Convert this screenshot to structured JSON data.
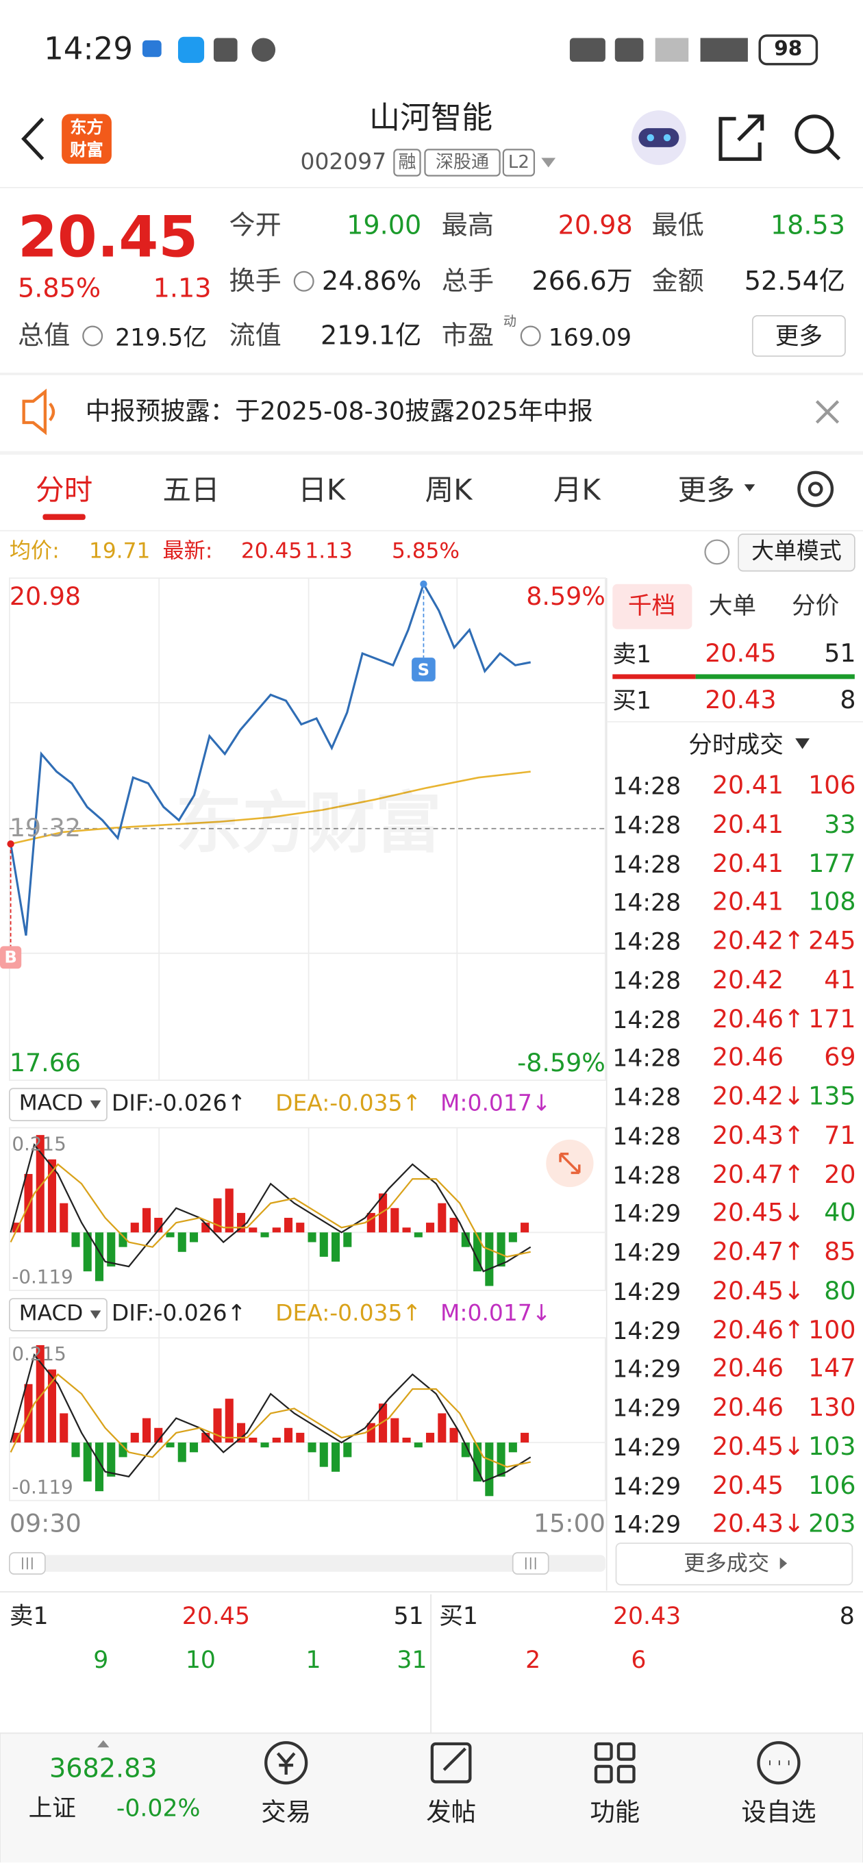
{
  "status_bar": {
    "time": "14:29",
    "battery": "98"
  },
  "header": {
    "logo": [
      "东方",
      "财富"
    ],
    "name": "山河智能",
    "code": "002097",
    "tags": [
      "融",
      "深股通",
      "L2"
    ]
  },
  "quote": {
    "price": "20.45",
    "change_pct": "5.85%",
    "change": "1.13",
    "fields": [
      {
        "label": "今开",
        "value": "19.00",
        "color": "green"
      },
      {
        "label": "最高",
        "value": "20.98",
        "color": "red"
      },
      {
        "label": "最低",
        "value": "18.53",
        "color": "green"
      },
      {
        "label": "换手",
        "value": "24.86%",
        "color": "dark"
      },
      {
        "label": "总手",
        "value": "266.6万",
        "color": "dark"
      },
      {
        "label": "金额",
        "value": "52.54亿",
        "color": "dark"
      },
      {
        "label": "总值",
        "value": "219.5亿",
        "color": "dark"
      },
      {
        "label": "流值",
        "value": "219.1亿",
        "color": "dark"
      },
      {
        "label": "市盈",
        "value": "169.09",
        "color": "dark"
      }
    ],
    "pe_tag": "动",
    "more": "更多"
  },
  "notice": "中报预披露：于2025-08-30披露2025年中报",
  "tabs": [
    "分时",
    "五日",
    "日K",
    "周K",
    "月K",
    "更多"
  ],
  "info_bar": {
    "avg_label": "均价:",
    "avg": "19.71",
    "latest_label": "最新:",
    "latest": "20.45",
    "change": "1.13",
    "change_pct": "5.85%",
    "mode": "大单模式"
  },
  "chart": {
    "high": "20.98",
    "low": "17.66",
    "prev_close": "19.32",
    "up_pct": "8.59%",
    "down_pct": "-8.59%",
    "start_time": "09:30",
    "end_time": "15:00",
    "watermark": "东方财富",
    "buy_marker": "B",
    "sell_marker": "S",
    "line_color": "#2f6db5",
    "avg_color": "#e8b431",
    "prices": [
      19.22,
      18.6,
      19.83,
      19.71,
      19.63,
      19.47,
      19.38,
      19.26,
      19.67,
      19.63,
      19.47,
      19.38,
      19.55,
      19.95,
      19.83,
      19.99,
      20.11,
      20.23,
      20.19,
      20.03,
      20.07,
      19.87,
      20.11,
      20.51,
      20.47,
      20.43,
      20.67,
      20.98,
      20.8,
      20.55,
      20.67,
      20.39,
      20.51,
      20.43,
      20.45
    ],
    "avg_prices": [
      19.22,
      19.3,
      19.33,
      19.35,
      19.37,
      19.4,
      19.45,
      19.52,
      19.6,
      19.67,
      19.71
    ]
  },
  "macd": {
    "panels": [
      {
        "label": "MACD",
        "dif": "DIF:-0.026↑",
        "dea": "DEA:-0.035↑",
        "m": "M:0.017↓",
        "top": "0.215",
        "bottom": "-0.119"
      },
      {
        "label": "MACD",
        "dif": "DIF:-0.026↑",
        "dea": "DEA:-0.035↑",
        "m": "M:0.017↓",
        "top": "0.215",
        "bottom": "-0.119"
      }
    ],
    "hist": [
      0.02,
      0.12,
      0.2,
      0.15,
      0.06,
      -0.03,
      -0.08,
      -0.1,
      -0.07,
      -0.03,
      0.02,
      0.05,
      0.03,
      -0.01,
      -0.04,
      -0.02,
      0.02,
      0.07,
      0.09,
      0.04,
      0.01,
      -0.01,
      0.01,
      0.03,
      0.02,
      -0.02,
      -0.05,
      -0.06,
      -0.03,
      0,
      0.04,
      0.08,
      0.05,
      0.01,
      -0.01,
      0.02,
      0.06,
      0.03,
      -0.03,
      -0.08,
      -0.11,
      -0.07,
      -0.02,
      0.02
    ],
    "dif": [
      0,
      0.18,
      0.12,
      0.02,
      -0.06,
      -0.07,
      -0.01,
      0.05,
      0.03,
      -0.02,
      0.02,
      0.1,
      0.06,
      0.03,
      0,
      0.03,
      0.09,
      0.14,
      0.1,
      0.02,
      -0.08,
      -0.06,
      -0.03
    ],
    "dea": [
      -0.02,
      0.08,
      0.14,
      0.1,
      0.03,
      -0.02,
      -0.03,
      0.02,
      0.03,
      0.01,
      0.01,
      0.06,
      0.07,
      0.04,
      0.01,
      0.02,
      0.05,
      0.11,
      0.11,
      0.06,
      -0.03,
      -0.05,
      -0.04
    ]
  },
  "order_book": {
    "tabs": [
      "千档",
      "大单",
      "分价"
    ],
    "sell1": [
      "卖1",
      "20.45",
      "51"
    ],
    "buy1": [
      "买1",
      "20.43",
      "8"
    ],
    "trades_title": "分时成交",
    "trades": [
      [
        "14:28",
        "20.41",
        "106",
        "red"
      ],
      [
        "14:28",
        "20.41",
        "33",
        "green"
      ],
      [
        "14:28",
        "20.41",
        "177",
        "green"
      ],
      [
        "14:28",
        "20.41",
        "108",
        "green"
      ],
      [
        "14:28",
        "20.42↑",
        "245",
        "red"
      ],
      [
        "14:28",
        "20.42",
        "41",
        "red"
      ],
      [
        "14:28",
        "20.46↑",
        "171",
        "red"
      ],
      [
        "14:28",
        "20.46",
        "69",
        "red"
      ],
      [
        "14:28",
        "20.42↓",
        "135",
        "green"
      ],
      [
        "14:28",
        "20.43↑",
        "71",
        "red"
      ],
      [
        "14:28",
        "20.47↑",
        "20",
        "red"
      ],
      [
        "14:29",
        "20.45↓",
        "40",
        "green"
      ],
      [
        "14:29",
        "20.47↑",
        "85",
        "red"
      ],
      [
        "14:29",
        "20.45↓",
        "80",
        "green"
      ],
      [
        "14:29",
        "20.46↑",
        "100",
        "red"
      ],
      [
        "14:29",
        "20.46",
        "147",
        "red"
      ],
      [
        "14:29",
        "20.46",
        "130",
        "red"
      ],
      [
        "14:29",
        "20.45↓",
        "103",
        "green"
      ],
      [
        "14:29",
        "20.45",
        "106",
        "green"
      ],
      [
        "14:29",
        "20.43↓",
        "203",
        "green"
      ]
    ],
    "more": "更多成交"
  },
  "depth": {
    "sell": [
      "卖1",
      "20.45",
      "51"
    ],
    "sell_counts": [
      "9",
      "10",
      "1",
      "31"
    ],
    "buy": [
      "买1",
      "20.43",
      "8"
    ],
    "buy_counts": [
      "2",
      "6"
    ]
  },
  "nav": {
    "index_value": "3682.83",
    "index_name": "上证",
    "index_change": "-0.02%",
    "items": [
      "交易",
      "发帖",
      "功能",
      "设自选"
    ]
  }
}
